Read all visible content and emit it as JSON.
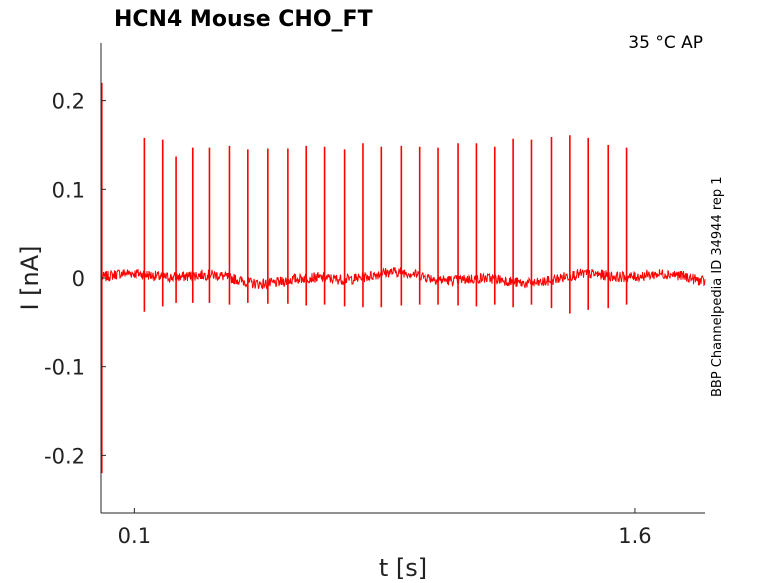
{
  "chart_data": {
    "type": "line",
    "title": "HCN4  Mouse  CHO_FT",
    "annotation": "35 °C  AP",
    "side_label": "BBP Channelpedia ID 34944 rep 1",
    "xlabel": "t [s]",
    "ylabel": "I [nA]",
    "x_ticks": [
      0.1,
      1.6
    ],
    "x_tick_labels": [
      "0.1",
      "1.6"
    ],
    "y_ticks": [
      0.2,
      0.1,
      0,
      -0.1,
      -0.2
    ],
    "y_tick_labels": [
      "0.2",
      "0.1",
      "0",
      "-0.1",
      "-0.2"
    ],
    "xlim": [
      -0.0,
      1.81
    ],
    "ylim": [
      -0.265,
      0.265
    ],
    "grid": false,
    "legend": "none",
    "series": [
      {
        "color": "#ff0000",
        "baseline": 0.0,
        "noise_amplitude": 0.006,
        "onset_artifact": {
          "t": 0.0,
          "max": 0.22,
          "min": -0.22
        },
        "spikes": [
          {
            "t": 0.13,
            "peak": 0.158,
            "trough": -0.038
          },
          {
            "t": 0.185,
            "peak": 0.156,
            "trough": -0.032
          },
          {
            "t": 0.225,
            "peak": 0.137,
            "trough": -0.028
          },
          {
            "t": 0.275,
            "peak": 0.147,
            "trough": -0.028
          },
          {
            "t": 0.325,
            "peak": 0.147,
            "trough": -0.028
          },
          {
            "t": 0.385,
            "peak": 0.149,
            "trough": -0.03
          },
          {
            "t": 0.44,
            "peak": 0.145,
            "trough": -0.028
          },
          {
            "t": 0.5,
            "peak": 0.146,
            "trough": -0.029
          },
          {
            "t": 0.56,
            "peak": 0.146,
            "trough": -0.029
          },
          {
            "t": 0.615,
            "peak": 0.149,
            "trough": -0.031
          },
          {
            "t": 0.67,
            "peak": 0.148,
            "trough": -0.03
          },
          {
            "t": 0.73,
            "peak": 0.145,
            "trough": -0.032
          },
          {
            "t": 0.785,
            "peak": 0.152,
            "trough": -0.033
          },
          {
            "t": 0.84,
            "peak": 0.148,
            "trough": -0.033
          },
          {
            "t": 0.9,
            "peak": 0.149,
            "trough": -0.031
          },
          {
            "t": 0.955,
            "peak": 0.148,
            "trough": -0.03
          },
          {
            "t": 1.01,
            "peak": 0.147,
            "trough": -0.03
          },
          {
            "t": 1.07,
            "peak": 0.152,
            "trough": -0.031
          },
          {
            "t": 1.125,
            "peak": 0.152,
            "trough": -0.032
          },
          {
            "t": 1.18,
            "peak": 0.148,
            "trough": -0.03
          },
          {
            "t": 1.235,
            "peak": 0.157,
            "trough": -0.033
          },
          {
            "t": 1.29,
            "peak": 0.156,
            "trough": -0.03
          },
          {
            "t": 1.35,
            "peak": 0.159,
            "trough": -0.034
          },
          {
            "t": 1.405,
            "peak": 0.161,
            "trough": -0.04
          },
          {
            "t": 1.46,
            "peak": 0.158,
            "trough": -0.036
          },
          {
            "t": 1.52,
            "peak": 0.15,
            "trough": -0.034
          },
          {
            "t": 1.575,
            "peak": 0.147,
            "trough": -0.03
          }
        ]
      }
    ]
  }
}
